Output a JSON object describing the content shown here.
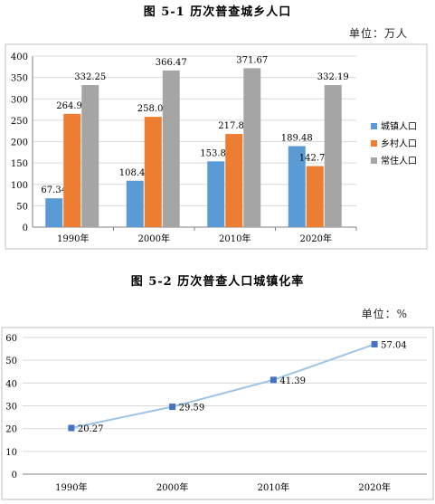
{
  "chart_data": [
    {
      "type": "bar",
      "title": "图 5-1   历次普查城乡人口",
      "unit": "单位：万人",
      "categories": [
        "1990年",
        "2000年",
        "2010年",
        "2020年"
      ],
      "ylim": [
        0,
        400
      ],
      "yticks": [
        0,
        50,
        100,
        150,
        200,
        250,
        300,
        350,
        400
      ],
      "grid": true,
      "legend": "right",
      "series": [
        {
          "name": "城镇人口",
          "color": "#5b9bd5",
          "values": [
            67.34,
            108.45,
            153.83,
            189.48
          ],
          "labels": [
            "67.34",
            "108.45",
            "153.83",
            "189.48"
          ]
        },
        {
          "name": "乡村人口",
          "color": "#ed7d31",
          "values": [
            264.91,
            258.02,
            217.84,
            142.71
          ],
          "labels": [
            "264.91",
            "258.02",
            "217.84",
            "142.71"
          ]
        },
        {
          "name": "常住人口",
          "color": "#a5a5a5",
          "values": [
            332.25,
            366.47,
            371.67,
            332.19
          ],
          "labels": [
            "332.25",
            "366.47",
            "371.67",
            "332.19"
          ]
        }
      ]
    },
    {
      "type": "line",
      "title": "图 5-2   历次普查人口城镇化率",
      "unit": "单位：%",
      "categories": [
        "1990年",
        "2000年",
        "2010年",
        "2020年"
      ],
      "ylim": [
        0,
        60
      ],
      "yticks": [
        0,
        10,
        20,
        30,
        40,
        50,
        60
      ],
      "grid": true,
      "series": [
        {
          "color": "#9dc3e6",
          "marker_color": "#4472c4",
          "values": [
            20.27,
            29.59,
            41.39,
            57.04
          ],
          "labels": [
            "20.27",
            "29.59",
            "41.39",
            "57.04"
          ]
        }
      ]
    }
  ]
}
